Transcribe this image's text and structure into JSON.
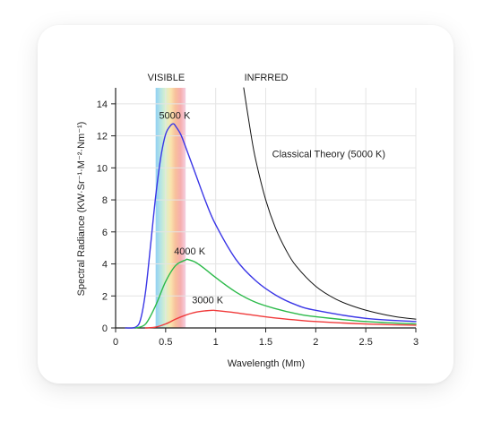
{
  "chart_data": {
    "type": "line",
    "title": "",
    "xlabel": "Wavelength (Mm)",
    "ylabel": "Spectral Radiance (KW·Sr⁻¹·M⁻²·Nm⁻¹)",
    "xlim": [
      0,
      3
    ],
    "ylim": [
      0,
      15
    ],
    "x_ticks": [
      {
        "value": 0,
        "label": "0"
      },
      {
        "value": 0.5,
        "label": "0.5"
      },
      {
        "value": 1,
        "label": "1"
      },
      {
        "value": 1.5,
        "label": "1.5"
      },
      {
        "value": 2,
        "label": "2"
      },
      {
        "value": 2.5,
        "label": "2.5"
      },
      {
        "value": 3,
        "label": "3"
      }
    ],
    "y_ticks": [
      {
        "value": 0,
        "label": "0"
      },
      {
        "value": 2,
        "label": "2"
      },
      {
        "value": 4,
        "label": "4"
      },
      {
        "value": 6,
        "label": "6"
      },
      {
        "value": 8,
        "label": "8"
      },
      {
        "value": 10,
        "label": "10"
      },
      {
        "value": 12,
        "label": "12"
      },
      {
        "value": 14,
        "label": "14"
      }
    ],
    "grid": true,
    "bands": [
      {
        "label": "VISIBLE",
        "x_range": [
          0.4,
          0.7
        ],
        "gradient_colors": [
          "#7ec8f0",
          "#a8e0e0",
          "#d4eec0",
          "#f8e0a0",
          "#f7b48a",
          "#f5a0a0",
          "#f2c7dd"
        ]
      },
      {
        "label": "INFRRED",
        "x_range": [
          0.7,
          3
        ],
        "gradient_colors": []
      }
    ],
    "series": [
      {
        "name": "5000 K",
        "color": "#3a36e6",
        "x": [
          0.1,
          0.2,
          0.25,
          0.3,
          0.35,
          0.4,
          0.45,
          0.5,
          0.55,
          0.58,
          0.6,
          0.65,
          0.7,
          0.8,
          0.9,
          1.0,
          1.2,
          1.4,
          1.6,
          1.8,
          2.0,
          2.5,
          3.0
        ],
        "y": [
          0.0,
          0.05,
          0.55,
          2.3,
          5.2,
          8.2,
          10.6,
          12.1,
          12.65,
          12.75,
          12.6,
          12.1,
          11.3,
          9.6,
          7.9,
          6.45,
          4.3,
          2.95,
          2.05,
          1.45,
          1.1,
          0.6,
          0.4
        ]
      },
      {
        "name": "4000 K",
        "color": "#2cba4a",
        "x": [
          0.2,
          0.3,
          0.4,
          0.5,
          0.6,
          0.7,
          0.72,
          0.8,
          0.9,
          1.0,
          1.2,
          1.4,
          1.6,
          1.8,
          2.0,
          2.5,
          3.0
        ],
        "y": [
          0.0,
          0.25,
          1.4,
          2.9,
          3.9,
          4.25,
          4.28,
          4.1,
          3.65,
          3.15,
          2.25,
          1.6,
          1.2,
          0.9,
          0.7,
          0.4,
          0.25
        ]
      },
      {
        "name": "3000 K",
        "color": "#f03a3a",
        "x": [
          0.3,
          0.4,
          0.5,
          0.6,
          0.7,
          0.8,
          0.9,
          0.97,
          1.0,
          1.2,
          1.4,
          1.6,
          1.8,
          2.0,
          2.5,
          3.0
        ],
        "y": [
          0.0,
          0.05,
          0.25,
          0.55,
          0.8,
          0.98,
          1.07,
          1.1,
          1.09,
          0.95,
          0.78,
          0.62,
          0.5,
          0.4,
          0.25,
          0.17
        ]
      },
      {
        "name": "Classical Theory (5000 K)",
        "color": "#111111",
        "x": [
          1.28,
          1.35,
          1.4,
          1.5,
          1.6,
          1.7,
          1.8,
          2.0,
          2.2,
          2.4,
          2.6,
          2.8,
          3.0
        ],
        "y": [
          15.0,
          12.2,
          10.5,
          8.0,
          6.2,
          4.9,
          3.9,
          2.6,
          1.8,
          1.3,
          0.95,
          0.7,
          0.55
        ]
      }
    ],
    "annotations": [
      {
        "text": "5000 K",
        "x": 0.59,
        "y": 13.3
      },
      {
        "text": "4000 K",
        "x": 0.74,
        "y": 4.8
      },
      {
        "text": "3000 K",
        "x": 0.92,
        "y": 1.75
      },
      {
        "text": "Classical Theory (5000 K)",
        "x": 2.13,
        "y": 10.9
      }
    ]
  }
}
